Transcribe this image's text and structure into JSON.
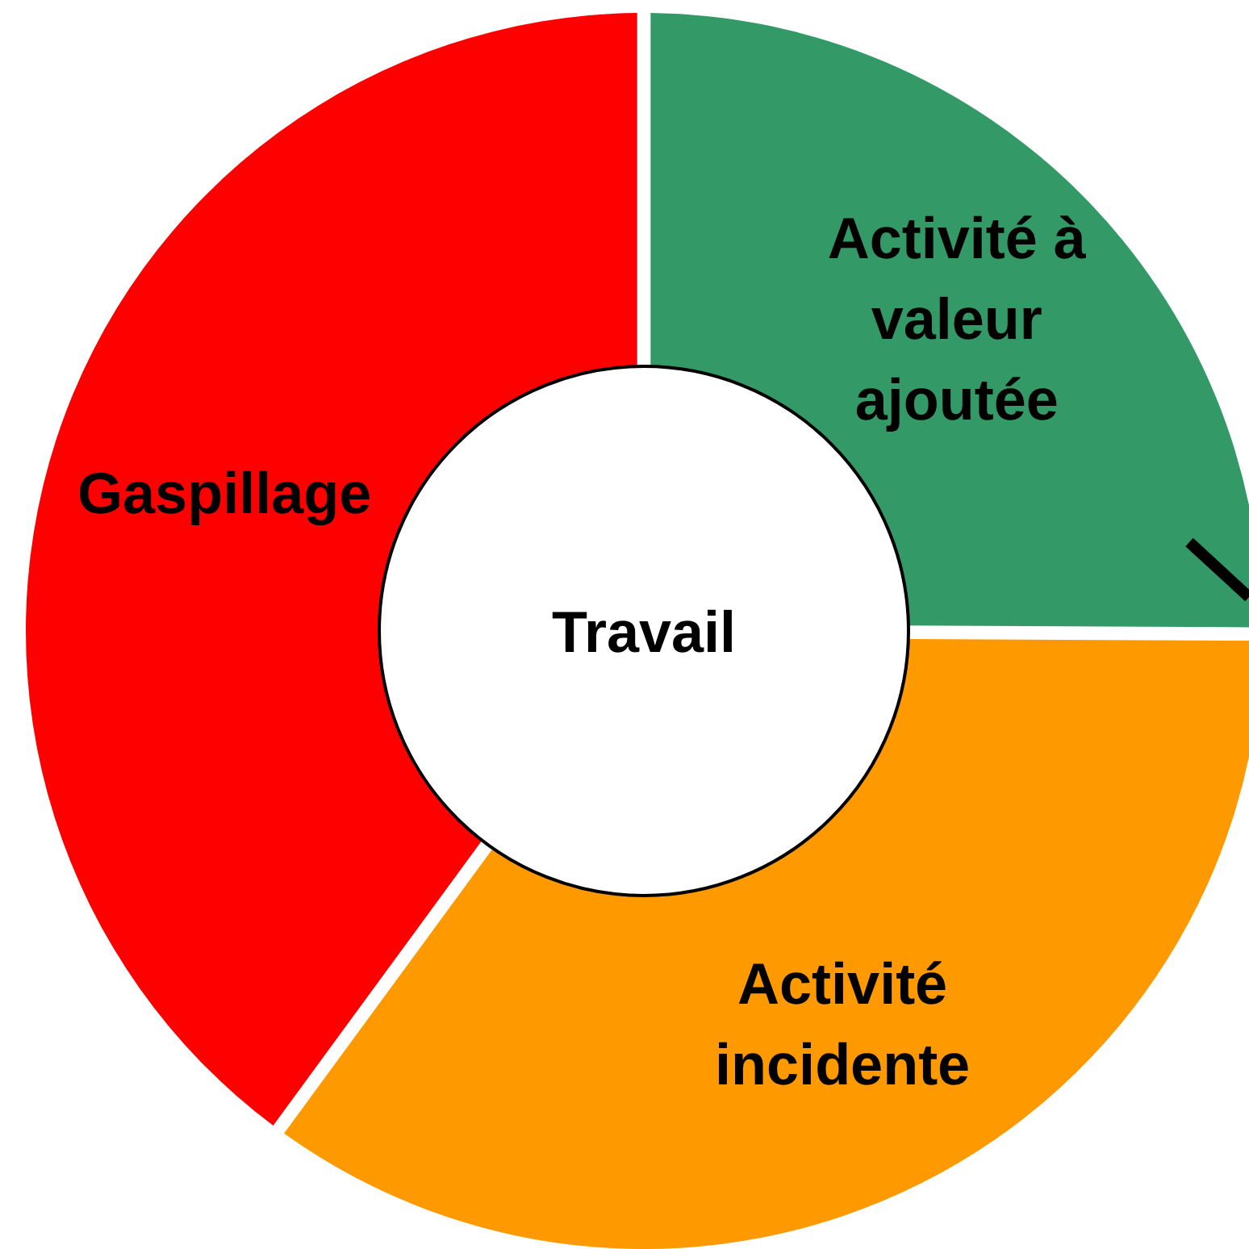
{
  "chart_data": {
    "type": "donut",
    "title": "Travail",
    "categories": [
      "Activité à valeur ajoutée",
      "Activité incidente",
      "Gaspillage"
    ],
    "values": [
      25,
      35,
      40
    ],
    "colors": [
      "#339966",
      "#ff9900",
      "#ff0000"
    ],
    "legend": false
  }
}
